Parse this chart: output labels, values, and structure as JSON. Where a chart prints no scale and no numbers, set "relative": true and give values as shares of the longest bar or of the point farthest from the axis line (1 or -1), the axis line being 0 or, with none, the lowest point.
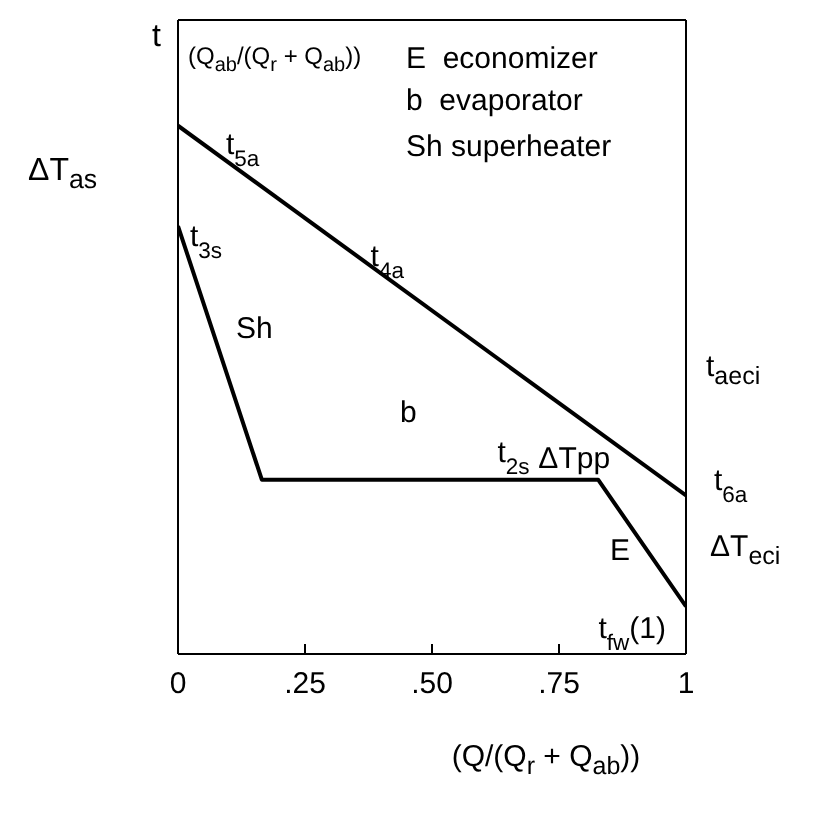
{
  "chart_data": {
    "type": "line",
    "relative": true,
    "ylabel": "t",
    "xlabel": "(Q/(Q$_{r}$ + Q$_{ab}$))",
    "xlim": [
      0,
      1
    ],
    "xticks": [
      0,
      {
        "value": 0.25,
        "label": ".25"
      },
      {
        "value": 0.5,
        "label": ".50"
      },
      {
        "value": 0.75,
        "label": ".75"
      },
      1
    ],
    "series": [
      {
        "color": "#000000",
        "x": [
          0,
          1
        ],
        "values": [
          1,
          0.3
        ]
      },
      {
        "color": "#000000",
        "x": [
          0,
          0.165,
          0.827,
          1
        ],
        "values": [
          0.81,
          0.33,
          0.33,
          0.09
        ]
      }
    ],
    "annotations": [
      "ΔT$_{as}$",
      "(Q$_{ab}$/(Q$_{r}$ + Q$_{ab}$))",
      "E  economizer",
      "b  evaporator",
      "Sh superheater",
      "Sh",
      "b",
      "E",
      "t$_{aeci}$",
      "ΔT$_{eci}$",
      {
        "text": "t$_{5a}$",
        "x": 0,
        "y": 1
      },
      {
        "text": "t$_{3s}$",
        "x": 0,
        "y": 0.81
      },
      {
        "text": "t$_{4a}$",
        "x": 0.32,
        "y": 0.78
      },
      {
        "text": "t$_{2s}$",
        "x": 0.7,
        "y": 0.33
      },
      {
        "text": "ΔTpp",
        "x": 0.827,
        "y": 0.33
      },
      {
        "text": "t$_{6a}$",
        "x": 1,
        "y": 0.3
      },
      {
        "text": "t$_{fw}$(1)",
        "x": 1,
        "y": 0.09
      }
    ]
  }
}
